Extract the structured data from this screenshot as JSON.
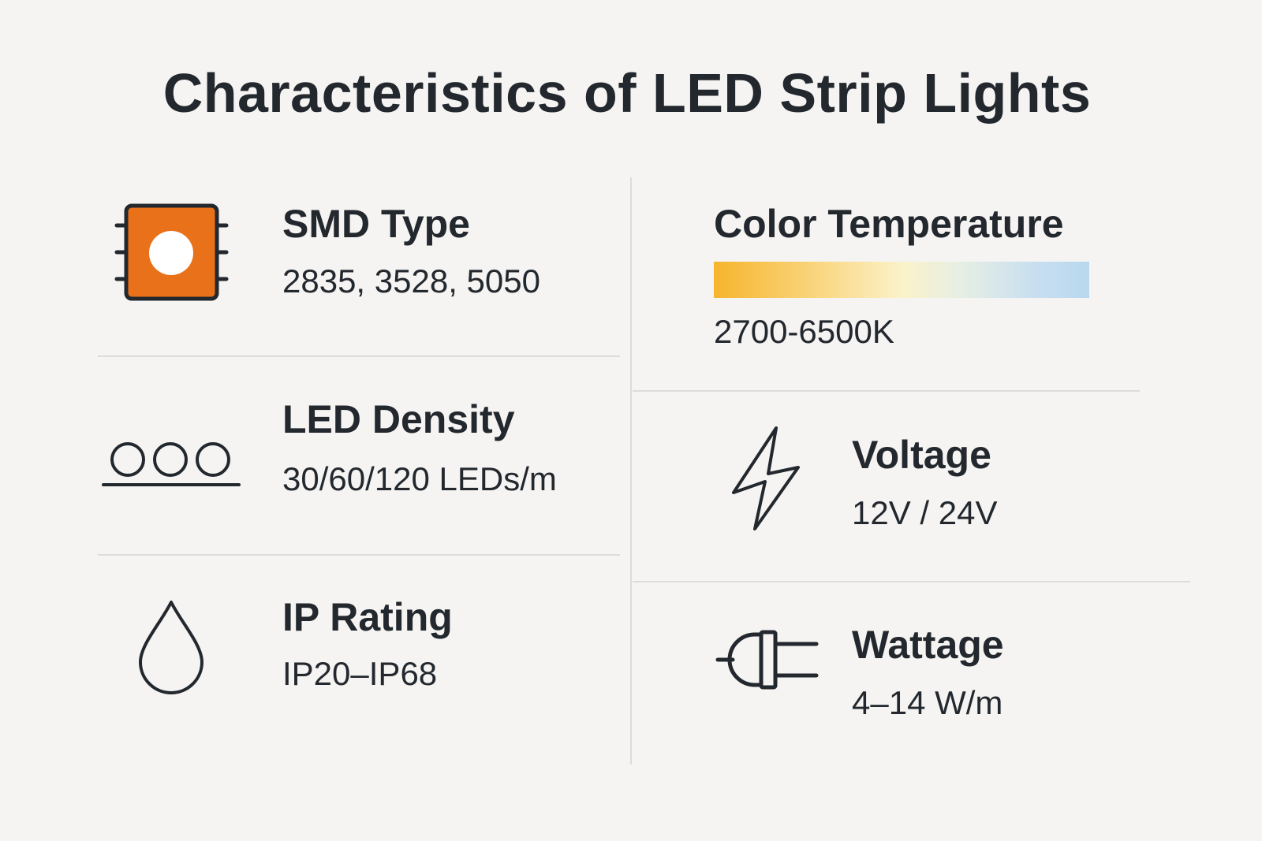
{
  "title": "Characteristics of LED Strip Lights",
  "items": {
    "smd": {
      "label": "SMD Type",
      "value": "2835, 3528, 5050",
      "icon": "smd-chip-icon"
    },
    "density": {
      "label": "LED Density",
      "value": "30/60/120 LEDs/m",
      "icon": "led-density-icon"
    },
    "ip": {
      "label": "IP Rating",
      "value": "IP20–IP68",
      "icon": "water-drop-icon"
    },
    "color_temp": {
      "label": "Color Temperature",
      "value": "2700-6500K",
      "gradient_colors": [
        "#f6b52d",
        "#fbf2c9",
        "#b9d7ef"
      ]
    },
    "voltage": {
      "label": "Voltage",
      "value": "12V / 24V",
      "icon": "lightning-bolt-icon"
    },
    "wattage": {
      "label": "Wattage",
      "value": "4–14 W/m",
      "icon": "power-plug-icon"
    }
  },
  "colors": {
    "accent": "#e8711a",
    "text": "#23282e",
    "background": "#f5f4f2",
    "divider": "#dedcd8"
  }
}
